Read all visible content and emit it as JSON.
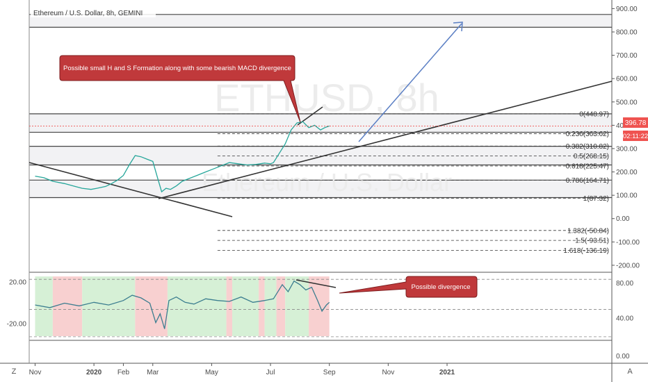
{
  "header": {
    "title": "Ethereum / U.S. Dollar, 8h, GEMINI"
  },
  "watermark": {
    "symbol": "ETHUSD, 8h",
    "name": "Ethereum / U.S. Dollar"
  },
  "price_badges": {
    "last_price": "396.78",
    "countdown": "02:11:22"
  },
  "annotations": {
    "main_callout": "Possible small H and S Formation along with some bearish MACD divergence",
    "lower_callout": "Possible divergence"
  },
  "toolbar": {
    "left_letter": "Z",
    "right_letter": "A"
  },
  "colors": {
    "candle_up": "#26a69a",
    "candle_down": "#ef5350",
    "projection_arrow": "#5b7fc4",
    "callout_fill": "#c0393b",
    "indicator_line": "#3b7d8f",
    "shade_green": "#d6f0d6",
    "shade_red": "#f8d0d0",
    "price_badge": "#ef5350"
  },
  "chart_data": [
    {
      "type": "line",
      "role": "main-price",
      "title": "Ethereum / U.S. Dollar, 8h, GEMINI",
      "y_ticks": [
        "900.00",
        "800.00",
        "700.00",
        "600.00",
        "500.00",
        "400.00",
        "300.00",
        "200.00",
        "100.00",
        "0.00",
        "-100.00",
        "-200.00"
      ],
      "ylim": [
        -230,
        925
      ],
      "x_ticks": [
        "Nov",
        "2020",
        "Feb",
        "Mar",
        "May",
        "Jul",
        "Sep",
        "Nov",
        "2021"
      ],
      "x_tick_months": [
        0,
        2,
        3,
        4,
        6,
        8,
        10,
        12,
        14
      ],
      "xlim_months": [
        -0.2,
        19.6
      ],
      "series": [
        {
          "values_month_price": [
            [
              0.0,
              182
            ],
            [
              0.3,
              175
            ],
            [
              0.6,
              160
            ],
            [
              1.0,
              150
            ],
            [
              1.3,
              140
            ],
            [
              1.6,
              130
            ],
            [
              1.9,
              125
            ],
            [
              2.1,
              130
            ],
            [
              2.4,
              138
            ],
            [
              2.6,
              150
            ],
            [
              2.8,
              165
            ],
            [
              3.0,
              185
            ],
            [
              3.2,
              230
            ],
            [
              3.4,
              270
            ],
            [
              3.6,
              265
            ],
            [
              3.8,
              255
            ],
            [
              4.0,
              245
            ],
            [
              4.15,
              180
            ],
            [
              4.3,
              115
            ],
            [
              4.45,
              130
            ],
            [
              4.6,
              125
            ],
            [
              4.8,
              140
            ],
            [
              5.0,
              160
            ],
            [
              5.2,
              170
            ],
            [
              5.5,
              185
            ],
            [
              5.8,
              200
            ],
            [
              6.0,
              210
            ],
            [
              6.3,
              225
            ],
            [
              6.6,
              240
            ],
            [
              6.9,
              235
            ],
            [
              7.2,
              230
            ],
            [
              7.5,
              232
            ],
            [
              7.8,
              238
            ],
            [
              8.0,
              235
            ],
            [
              8.1,
              240
            ],
            [
              8.3,
              280
            ],
            [
              8.5,
              320
            ],
            [
              8.7,
              380
            ],
            [
              8.9,
              410
            ],
            [
              9.1,
              415
            ],
            [
              9.3,
              390
            ],
            [
              9.5,
              400
            ],
            [
              9.7,
              380
            ],
            [
              9.85,
              390
            ],
            [
              10.0,
              396.78
            ]
          ]
        }
      ],
      "fib_levels": [
        {
          "label": "0(448.97)",
          "value": 448.97
        },
        {
          "label": "0.236(363.62)",
          "value": 363.62
        },
        {
          "label": "0.382(310.82)",
          "value": 310.82
        },
        {
          "label": "0.5(268.15)",
          "value": 268.15
        },
        {
          "label": "0.618(225.47)",
          "value": 225.47
        },
        {
          "label": "0.786(164.71)",
          "value": 164.71
        },
        {
          "label": "1(87.32)",
          "value": 87.32
        },
        {
          "label": "1.382(-50.84)",
          "value": -50.84
        },
        {
          "label": "1.5(-93.51)",
          "value": -93.51
        },
        {
          "label": "1.618(-136.19)",
          "value": -136.19
        }
      ]
    },
    {
      "type": "line",
      "role": "oscillator",
      "y_ticks_left": [
        "20.00",
        "-20.00"
      ],
      "y_ticks_right": [
        "80.00",
        "40.00"
      ],
      "ylim_right": [
        15,
        92
      ],
      "series": [
        {
          "values_month_value": [
            [
              0.0,
              55
            ],
            [
              0.5,
              52
            ],
            [
              1.0,
              57
            ],
            [
              1.5,
              54
            ],
            [
              2.0,
              58
            ],
            [
              2.5,
              55
            ],
            [
              3.0,
              60
            ],
            [
              3.3,
              66
            ],
            [
              3.6,
              63
            ],
            [
              3.9,
              57
            ],
            [
              4.1,
              35
            ],
            [
              4.25,
              45
            ],
            [
              4.4,
              28
            ],
            [
              4.55,
              60
            ],
            [
              4.8,
              64
            ],
            [
              5.1,
              58
            ],
            [
              5.4,
              56
            ],
            [
              5.8,
              62
            ],
            [
              6.2,
              60
            ],
            [
              6.6,
              59
            ],
            [
              7.0,
              64
            ],
            [
              7.4,
              58
            ],
            [
              7.8,
              60
            ],
            [
              8.1,
              62
            ],
            [
              8.4,
              78
            ],
            [
              8.6,
              70
            ],
            [
              8.8,
              82
            ],
            [
              9.0,
              78
            ],
            [
              9.2,
              72
            ],
            [
              9.4,
              75
            ],
            [
              9.6,
              60
            ],
            [
              9.75,
              48
            ],
            [
              9.9,
              55
            ],
            [
              10.0,
              58
            ]
          ]
        }
      ]
    }
  ]
}
